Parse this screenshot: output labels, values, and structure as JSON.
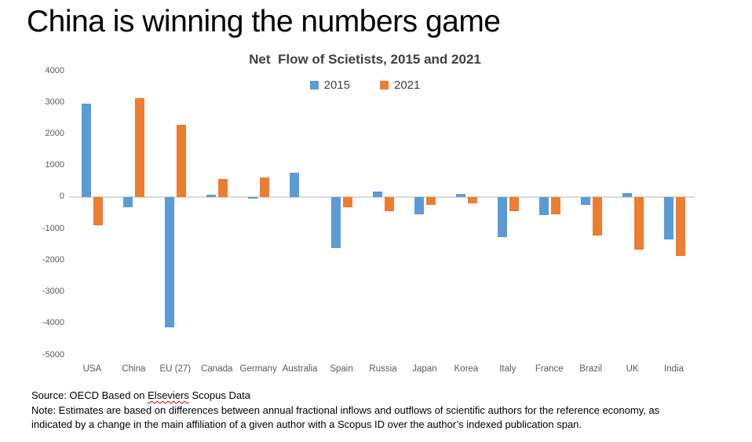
{
  "page": {
    "title": "China is winning the numbers game"
  },
  "chart_data": {
    "type": "bar",
    "title": "Net  Flow of Scietists, 2015 and 2021",
    "categories": [
      "USA",
      "China",
      "EU (27)",
      "Canada",
      "Germany",
      "Australia",
      "Spain",
      "Russia",
      "Japan",
      "Korea",
      "Italy",
      "France",
      "Brazil",
      "UK",
      "India"
    ],
    "series": [
      {
        "name": "2015",
        "color": "#5B9BD5",
        "values": [
          2950,
          -320,
          -4130,
          70,
          -60,
          780,
          -1620,
          170,
          -550,
          100,
          -1260,
          -570,
          -260,
          120,
          -1340
        ]
      },
      {
        "name": "2021",
        "color": "#ED7D31",
        "values": [
          -900,
          3130,
          2280,
          570,
          620,
          0,
          -320,
          -460,
          -260,
          -200,
          -460,
          -540,
          -1220,
          -1680,
          -1870
        ]
      }
    ],
    "ylim": [
      -5000,
      4000
    ],
    "ytick_step": 1000,
    "grid": false,
    "legend_position": "top"
  },
  "footer": {
    "source_prefix": "Source: OECD Based on ",
    "source_misspelled": "Elseviers",
    "source_suffix": " Scopus Data",
    "note_lines": [
      "Note: Estimates are based on differences between annual fractional inflows and outflows of scientific authors for the reference economy, as",
      "indicated by a change in the main affiliation of a given author with a Scopus ID over the author’s indexed publication span."
    ]
  },
  "colors": {
    "series_2015": "#5B9BD5",
    "series_2021": "#ED7D31",
    "axis_line": "#D9D9D9",
    "tick_label": "#595959",
    "legend_text": "#404040",
    "title_text": "#000000",
    "subtitle_text": "#404040"
  }
}
